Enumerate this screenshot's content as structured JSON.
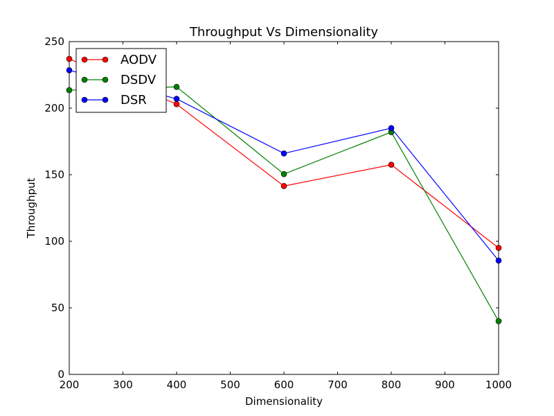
{
  "chart_data": {
    "type": "line",
    "title": "Throughput Vs Dimensionality",
    "xlabel": "Dimensionality",
    "ylabel": "Throughput",
    "xlim": [
      200,
      1000
    ],
    "ylim": [
      0,
      250
    ],
    "x": [
      200,
      400,
      600,
      800,
      1000
    ],
    "xticks": [
      "200",
      "300",
      "400",
      "500",
      "600",
      "700",
      "800",
      "900",
      "1000"
    ],
    "yticks": [
      "0",
      "50",
      "100",
      "150",
      "200",
      "250"
    ],
    "grid": false,
    "legend_position": "top-left",
    "series": [
      {
        "name": "AODV",
        "color": "#ff0000",
        "values": [
          237,
          203,
          141.5,
          157.5,
          95
        ]
      },
      {
        "name": "DSDV",
        "color": "#008000",
        "values": [
          213.5,
          216,
          150.5,
          182,
          40
        ]
      },
      {
        "name": "DSR",
        "color": "#0000ff",
        "values": [
          228.5,
          207,
          166,
          185,
          85.5
        ]
      }
    ]
  }
}
